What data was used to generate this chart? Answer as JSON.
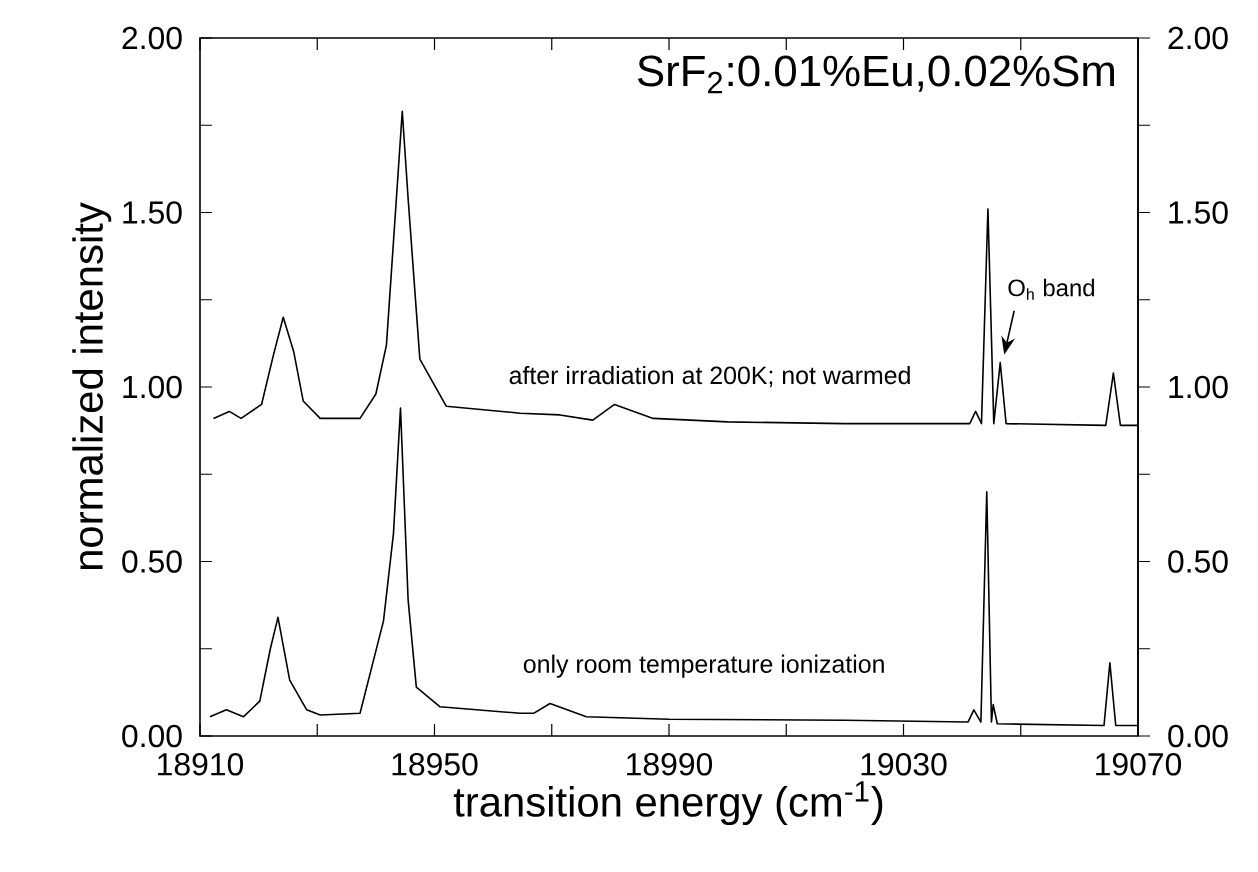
{
  "chart_data": {
    "type": "line",
    "title": "SrF$_{2}$:0.01%Eu,0.02%Sm",
    "xlabel": "transition energy (cm$^{-1}$)",
    "ylabel": "normalized intensity",
    "xlim": [
      18910,
      19070
    ],
    "xticks": [
      18910,
      {
        "value": 18930,
        "label": null
      },
      18950,
      {
        "value": 18970,
        "label": null
      },
      18990,
      {
        "value": 19010,
        "label": null
      },
      19030,
      {
        "value": 19050,
        "label": null
      },
      19070
    ],
    "ylim": [
      0,
      2
    ],
    "yticks": [
      {
        "value": 0,
        "label": "0.00"
      },
      {
        "value": 0.25,
        "label": null
      },
      {
        "value": 0.5,
        "label": "0.50"
      },
      {
        "value": 0.75,
        "label": null
      },
      {
        "value": 1,
        "label": "1.00"
      },
      {
        "value": 1.25,
        "label": null
      },
      {
        "value": 1.5,
        "label": "1.50"
      },
      {
        "value": 1.75,
        "label": null
      },
      {
        "value": 2,
        "label": "2.00"
      }
    ],
    "y2lim": [
      0,
      2
    ],
    "y2ticks": [
      {
        "value": 0,
        "label": "0.00"
      },
      {
        "value": 0.25,
        "label": null
      },
      {
        "value": 0.5,
        "label": "0.50"
      },
      {
        "value": 0.75,
        "label": null
      },
      {
        "value": 1,
        "label": "1.00"
      },
      {
        "value": 1.25,
        "label": null
      },
      {
        "value": 1.5,
        "label": "1.50"
      },
      {
        "value": 1.75,
        "label": null
      },
      {
        "value": 2,
        "label": "2.00"
      }
    ],
    "series": [
      {
        "color": "#000000",
        "x": [
          18912.3,
          18915.0,
          18917.0,
          18920.5,
          18922.5,
          18924.2,
          18926.0,
          18927.6,
          18930.5,
          18937.3,
          18940.0,
          18941.8,
          18943.5,
          18944.5,
          18945.5,
          18947.5,
          18952.0,
          18964.6,
          18971.4,
          18977.0,
          18980.7,
          18987.3,
          19000,
          19020,
          19041.3,
          19042.3,
          19043.3,
          19044.4,
          19045.4,
          19046.5,
          19047.5,
          19064.5,
          19065.8,
          19067.0,
          19070
        ],
        "values": [
          0.91,
          0.93,
          0.91,
          0.95,
          1.09,
          1.2,
          1.1,
          0.96,
          0.91,
          0.91,
          0.98,
          1.12,
          1.54,
          1.79,
          1.54,
          1.08,
          0.945,
          0.925,
          0.92,
          0.905,
          0.95,
          0.91,
          0.9,
          0.895,
          0.895,
          0.93,
          0.895,
          1.51,
          0.895,
          1.07,
          0.895,
          0.89,
          1.04,
          0.89,
          0.89
        ]
      },
      {
        "color": "#000000",
        "x": [
          18911.7,
          18914.5,
          18917.4,
          18920.2,
          18922.0,
          18923.3,
          18925.3,
          18928.2,
          18930.5,
          18937.3,
          18941.3,
          18943.0,
          18944.2,
          18945.5,
          18946.9,
          18950.9,
          18964.6,
          18966.9,
          18969.7,
          18975.9,
          18990,
          19020,
          19041.0,
          19042.0,
          19043.2,
          19044.2,
          19045.0,
          19045.3,
          19046.0,
          19064.2,
          19065.2,
          19066.2,
          19070
        ],
        "values": [
          0.055,
          0.075,
          0.055,
          0.1,
          0.25,
          0.34,
          0.16,
          0.075,
          0.06,
          0.065,
          0.33,
          0.58,
          0.94,
          0.39,
          0.14,
          0.084,
          0.065,
          0.065,
          0.093,
          0.055,
          0.048,
          0.045,
          0.04,
          0.075,
          0.04,
          0.7,
          0.04,
          0.09,
          0.035,
          0.03,
          0.21,
          0.03,
          0.03
        ]
      }
    ],
    "annotations": [
      "after irradiation at 200K; not warmed",
      "only room temperature ionization",
      {
        "text": "O$_{h}$ band",
        "x": 19046.5,
        "y": 1.07
      }
    ],
    "grid": false,
    "marker": "none",
    "line_style": "solid"
  }
}
